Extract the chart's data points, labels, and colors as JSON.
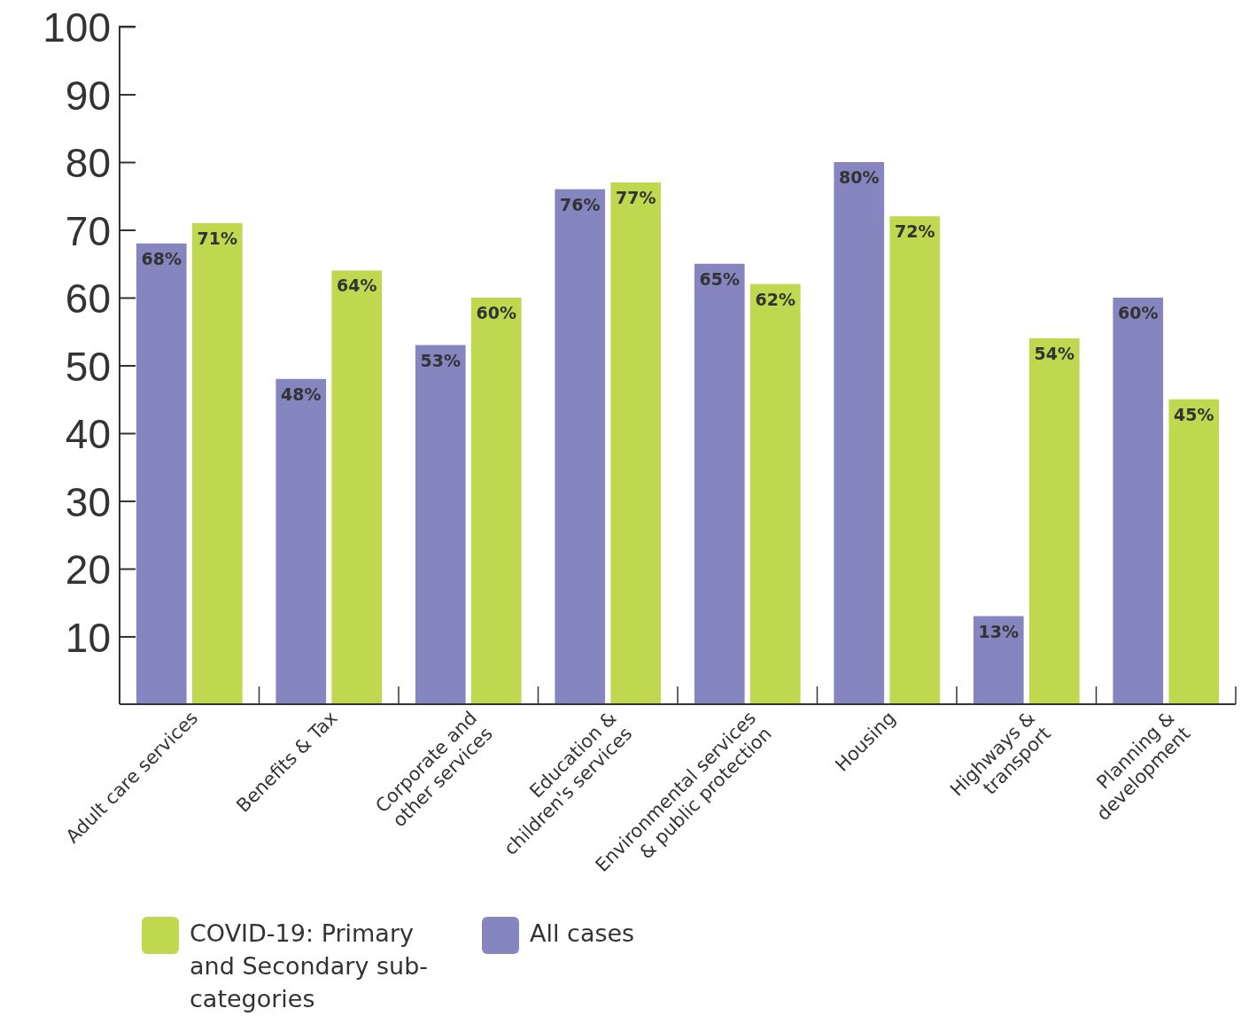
{
  "chart_data": {
    "type": "bar",
    "categories": [
      "Adult care services",
      "Benefits & Tax",
      "Corporate and\nother services",
      "Education &\nchildren's services",
      "Environmental services\n& public protection",
      "Housing",
      "Highways &\ntransport",
      "Planning &\ndevelopment"
    ],
    "series": [
      {
        "name": "All cases",
        "color": "#8585bf",
        "values": [
          68,
          48,
          53,
          76,
          65,
          80,
          13,
          60
        ],
        "value_labels": [
          "68%",
          "48%",
          "53%",
          "76%",
          "65%",
          "80%",
          "13%",
          "60%"
        ]
      },
      {
        "name": "COVID-19: Primary and Secondary sub-categories",
        "color": "#bfd84f",
        "values": [
          71,
          64,
          60,
          77,
          62,
          72,
          54,
          45
        ],
        "value_labels": [
          "71%",
          "64%",
          "60%",
          "77%",
          "62%",
          "72%",
          "54%",
          "45%"
        ]
      }
    ],
    "ylim": [
      0,
      100
    ],
    "yticks": [
      10,
      20,
      30,
      40,
      50,
      60,
      70,
      80,
      90,
      100
    ],
    "legend": "bottom",
    "grid": false
  }
}
